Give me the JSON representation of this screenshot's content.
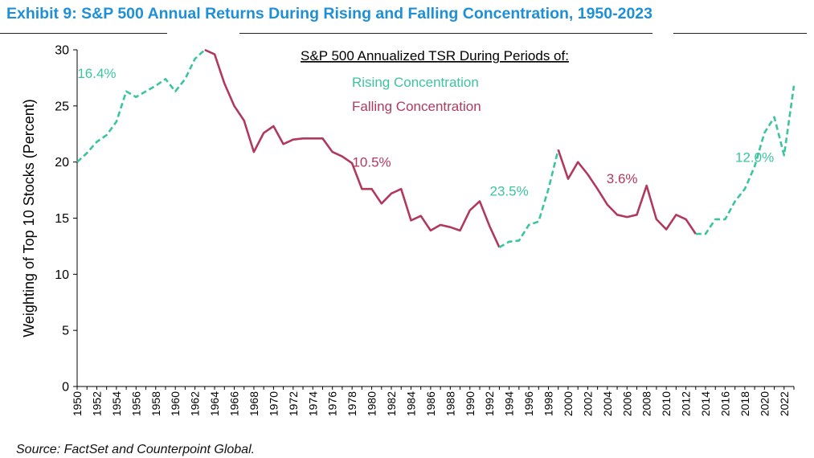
{
  "exhibit_title": "Exhibit 9: S&P 500 Annual Returns During Rising and Falling Concentration, 1950-2023",
  "source": "Source: FactSet and Counterpoint Global.",
  "colors": {
    "rising": "#3cc4a0",
    "falling": "#b03a5e",
    "title": "#1f8fd6"
  },
  "chart_data": {
    "type": "line",
    "title": "S&P 500 Annualized TSR During Periods of:",
    "ylabel": "Weighting of Top 10 Stocks (Percent)",
    "xlabel": "",
    "ylim": [
      0,
      30
    ],
    "xlim": [
      1950,
      2023
    ],
    "yticks": [
      "0",
      "5",
      "10",
      "15",
      "20",
      "25",
      "30"
    ],
    "xticks": [
      "1950",
      "1952",
      "1954",
      "1956",
      "1958",
      "1960",
      "1962",
      "1964",
      "1966",
      "1968",
      "1970",
      "1972",
      "1974",
      "1976",
      "1978",
      "1980",
      "1982",
      "1984",
      "1986",
      "1988",
      "1990",
      "1992",
      "1994",
      "1996",
      "1998",
      "2000",
      "2002",
      "2004",
      "2006",
      "2008",
      "2010",
      "2012",
      "2014",
      "2016",
      "2018",
      "2020",
      "2022"
    ],
    "legend": [
      {
        "label": "Rising Concentration",
        "style": "rising"
      },
      {
        "label": "Falling Concentration",
        "style": "falling"
      }
    ],
    "series": [
      {
        "style": "rising",
        "points": [
          [
            1950,
            20.0
          ],
          [
            1951,
            20.8
          ],
          [
            1952,
            21.8
          ],
          [
            1953,
            22.4
          ],
          [
            1954,
            23.6
          ],
          [
            1955,
            26.3
          ],
          [
            1956,
            25.8
          ],
          [
            1957,
            26.3
          ],
          [
            1958,
            26.8
          ],
          [
            1959,
            27.4
          ],
          [
            1960,
            26.3
          ],
          [
            1961,
            27.4
          ],
          [
            1962,
            29.2
          ],
          [
            1963,
            30.0
          ]
        ]
      },
      {
        "style": "falling",
        "points": [
          [
            1963,
            30.0
          ],
          [
            1964,
            29.6
          ],
          [
            1965,
            27.0
          ],
          [
            1966,
            25.0
          ],
          [
            1967,
            23.7
          ],
          [
            1968,
            20.9
          ],
          [
            1969,
            22.6
          ],
          [
            1970,
            23.2
          ],
          [
            1971,
            21.6
          ],
          [
            1972,
            22.0
          ],
          [
            1973,
            22.1
          ],
          [
            1974,
            22.1
          ],
          [
            1975,
            22.1
          ],
          [
            1976,
            20.9
          ],
          [
            1977,
            20.5
          ],
          [
            1978,
            19.9
          ],
          [
            1979,
            17.6
          ],
          [
            1980,
            17.6
          ],
          [
            1981,
            16.3
          ],
          [
            1982,
            17.2
          ],
          [
            1983,
            17.6
          ],
          [
            1984,
            14.8
          ],
          [
            1985,
            15.2
          ],
          [
            1986,
            13.9
          ],
          [
            1987,
            14.4
          ],
          [
            1988,
            14.2
          ],
          [
            1989,
            13.9
          ],
          [
            1990,
            15.7
          ],
          [
            1991,
            16.5
          ],
          [
            1992,
            14.3
          ],
          [
            1993,
            12.4
          ]
        ]
      },
      {
        "style": "rising",
        "points": [
          [
            1993,
            12.4
          ],
          [
            1994,
            12.9
          ],
          [
            1995,
            13.0
          ],
          [
            1996,
            14.4
          ],
          [
            1997,
            14.7
          ],
          [
            1998,
            17.6
          ],
          [
            1999,
            21.1
          ]
        ]
      },
      {
        "style": "falling",
        "points": [
          [
            1999,
            21.1
          ],
          [
            2000,
            18.5
          ],
          [
            2001,
            20.0
          ],
          [
            2002,
            18.9
          ],
          [
            2003,
            17.6
          ],
          [
            2004,
            16.2
          ],
          [
            2005,
            15.3
          ],
          [
            2006,
            15.1
          ],
          [
            2007,
            15.3
          ],
          [
            2008,
            17.9
          ],
          [
            2009,
            14.9
          ],
          [
            2010,
            14.0
          ],
          [
            2011,
            15.3
          ],
          [
            2012,
            14.9
          ],
          [
            2013,
            13.6
          ]
        ]
      },
      {
        "style": "rising",
        "points": [
          [
            2013,
            13.6
          ],
          [
            2014,
            13.6
          ],
          [
            2015,
            14.9
          ],
          [
            2016,
            14.9
          ],
          [
            2017,
            16.5
          ],
          [
            2018,
            17.6
          ],
          [
            2019,
            19.6
          ],
          [
            2020,
            22.6
          ],
          [
            2021,
            24.0
          ],
          [
            2022,
            20.6
          ],
          [
            2023,
            26.8
          ]
        ]
      }
    ],
    "annotations": [
      {
        "text": "16.4%",
        "style": "rising",
        "x": 1952,
        "y": 27.5
      },
      {
        "text": "10.5%",
        "style": "falling",
        "x": 1980,
        "y": 19.6
      },
      {
        "text": "23.5%",
        "style": "rising",
        "x": 1994,
        "y": 17.0
      },
      {
        "text": "3.6%",
        "style": "falling",
        "x": 2005.5,
        "y": 18.1
      },
      {
        "text": "12.0%",
        "style": "rising",
        "x": 2019,
        "y": 20.0
      }
    ]
  }
}
